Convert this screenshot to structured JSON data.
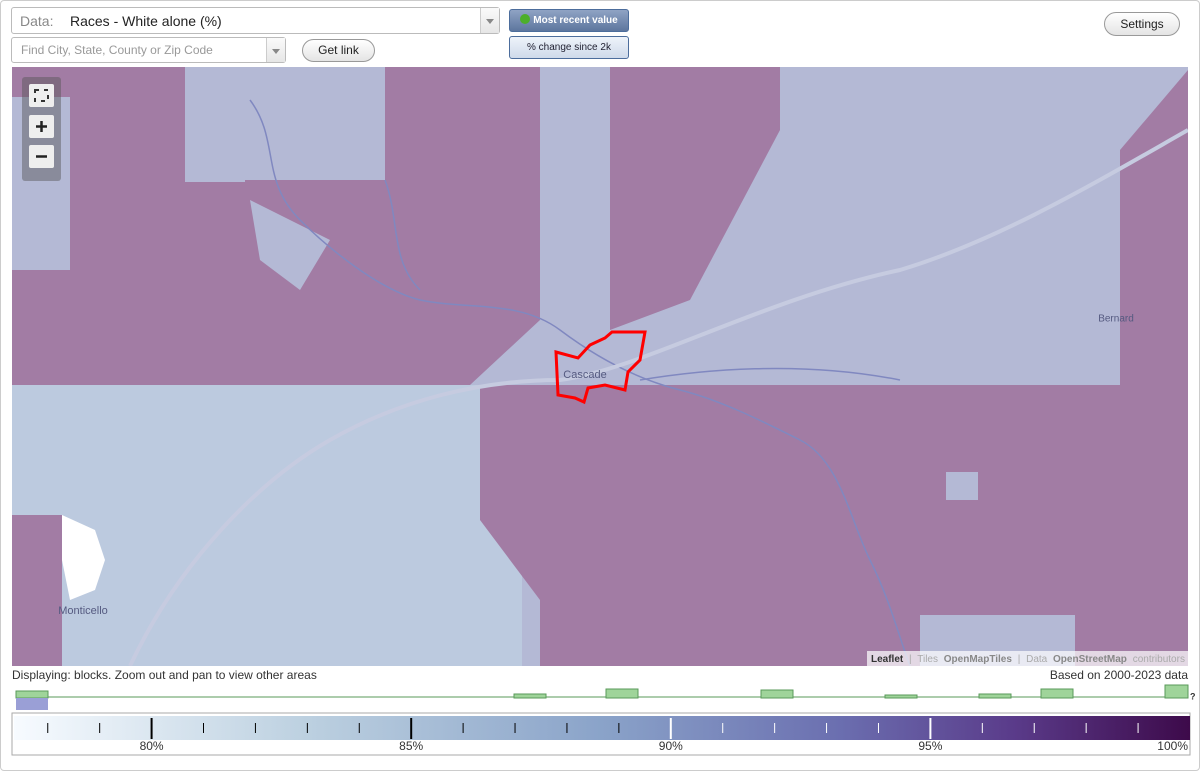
{
  "toolbar": {
    "data_label": "Data:",
    "data_value": "Races - White alone (%)",
    "most_recent": "Most recent value",
    "change": "% change since 2k",
    "search_placeholder": "Find City, State, County or Zip Code",
    "get_link": "Get link",
    "settings": "Settings"
  },
  "map": {
    "places": [
      "Cascade",
      "Bernard",
      "Monticello"
    ],
    "attribution": {
      "leaflet": "Leaflet",
      "separator": "|",
      "tiles": "Tiles",
      "tiles_source": "OpenMapTiles",
      "data": "Data",
      "data_source": "OpenStreetMap",
      "contributors": "contributors"
    }
  },
  "status": {
    "displaying": "Displaying: blocks. Zoom out and pan to view other areas",
    "based_on": "Based on 2000-2023 data",
    "help": "?"
  },
  "legend": {
    "min": 77.35,
    "max": 100,
    "ticks": [
      {
        "value": 80,
        "label": "80%"
      },
      {
        "value": 85,
        "label": "85%"
      },
      {
        "value": 90,
        "label": "90%"
      },
      {
        "value": 95,
        "label": "95%"
      },
      {
        "value": 100,
        "label": "100%"
      }
    ],
    "minor_ticks": [
      78,
      79,
      81,
      82,
      83,
      84,
      86,
      87,
      88,
      89,
      91,
      92,
      93,
      94,
      96,
      97,
      98,
      99
    ]
  }
}
